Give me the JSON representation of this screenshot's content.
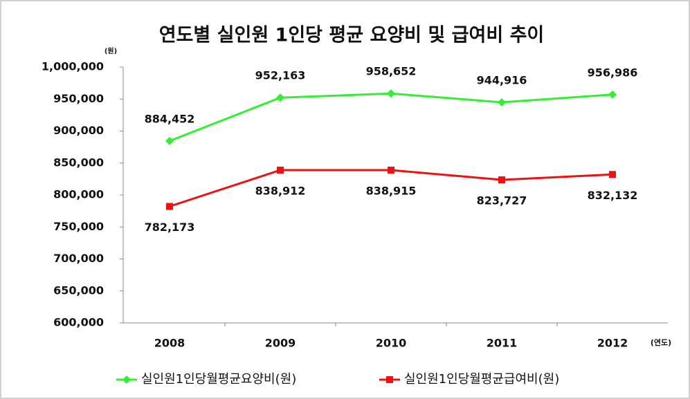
{
  "chart_data": {
    "type": "line",
    "title": "연도별 실인원 1인당 평균 요양비 및 급여비 추이",
    "y_label": "(원)",
    "x_label": "(연도)",
    "categories": [
      "2008",
      "2009",
      "2010",
      "2011",
      "2012"
    ],
    "series": [
      {
        "name": "실인원1인당월평균요양비(원)",
        "color": "#33ee33",
        "marker": "diamond",
        "label_position": "above",
        "values": [
          884452,
          952163,
          958652,
          944916,
          956986
        ],
        "value_labels": [
          "884,452",
          "952,163",
          "958,652",
          "944,916",
          "956,986"
        ]
      },
      {
        "name": "실인원1인당월평균급여비(원)",
        "color": "#ee1111",
        "marker": "square",
        "label_position": "below",
        "values": [
          782173,
          838912,
          838915,
          823727,
          832132
        ],
        "value_labels": [
          "782,173",
          "838,912",
          "838,915",
          "823,727",
          "832,132"
        ]
      }
    ],
    "ylim": [
      600000,
      1000000
    ],
    "yticks": [
      {
        "value": 600000,
        "label": "600,000"
      },
      {
        "value": 650000,
        "label": "650,000"
      },
      {
        "value": 700000,
        "label": "700,000"
      },
      {
        "value": 750000,
        "label": "750,000"
      },
      {
        "value": 800000,
        "label": "800,000"
      },
      {
        "value": 850000,
        "label": "850,000"
      },
      {
        "value": 900000,
        "label": "900,000"
      },
      {
        "value": 950000,
        "label": "950,000"
      },
      {
        "value": 1000000,
        "label": "1,000,000"
      }
    ],
    "legend": "bottom",
    "grid": false
  }
}
